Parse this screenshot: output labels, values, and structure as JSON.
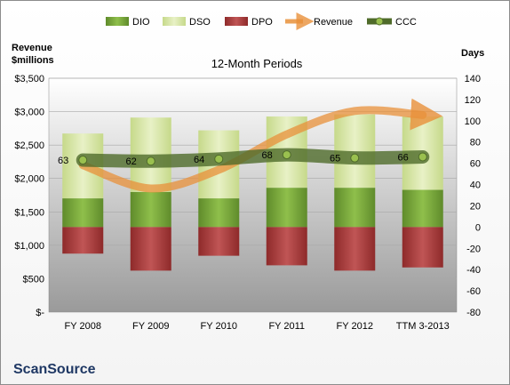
{
  "chart_data": {
    "type": "bar",
    "title": "12-Month Periods",
    "categories": [
      "FY 2008",
      "FY 2009",
      "FY 2010",
      "FY 2011",
      "FY 2012",
      "TTM 3-2013"
    ],
    "left_axis_label_line1": "Revenue",
    "left_axis_label_line2": "$millions",
    "right_axis_label": "Days",
    "ylim_left": [
      0,
      3500
    ],
    "ylim_right": [
      -80,
      140
    ],
    "left_ticks": [
      0,
      500,
      1000,
      1500,
      2000,
      2500,
      3000,
      3500
    ],
    "left_tick_labels": [
      "$-",
      "$500",
      "$1,000",
      "$1,500",
      "$2,000",
      "$2,500",
      "$3,000",
      "$3,500"
    ],
    "right_ticks": [
      -80,
      -60,
      -40,
      -20,
      0,
      20,
      40,
      60,
      80,
      100,
      120,
      140
    ],
    "right_tick_labels": [
      "-80",
      "-60",
      "-40",
      "-20",
      "0",
      "20",
      "40",
      "60",
      "80",
      "100",
      "120",
      "140"
    ],
    "legend": [
      "DIO",
      "DSO",
      "DPO",
      "Revenue",
      "CCC"
    ],
    "legend_position": "top",
    "series": [
      {
        "name": "DIO",
        "axis": "right",
        "values": [
          27,
          33,
          27,
          37,
          37,
          35
        ],
        "color": "#77a33a"
      },
      {
        "name": "DSO",
        "axis": "right",
        "values": [
          61,
          70,
          64,
          67,
          69,
          69
        ],
        "color": "#d7e4a6"
      },
      {
        "name": "DPO",
        "axis": "right",
        "values": [
          -25,
          -41,
          -27,
          -36,
          -41,
          -38
        ],
        "color": "#a93a3a"
      },
      {
        "name": "Revenue",
        "axis": "left",
        "values": [
          2200,
          1850,
          2130,
          2660,
          3010,
          2950
        ],
        "color": "#e8903a"
      },
      {
        "name": "CCC",
        "axis": "right",
        "values": [
          63,
          62,
          64,
          68,
          65,
          66
        ],
        "color": "#4f6b2a"
      }
    ],
    "ccc_labels": [
      "63",
      "62",
      "64",
      "68",
      "65",
      "66"
    ]
  },
  "company": "ScanSource"
}
